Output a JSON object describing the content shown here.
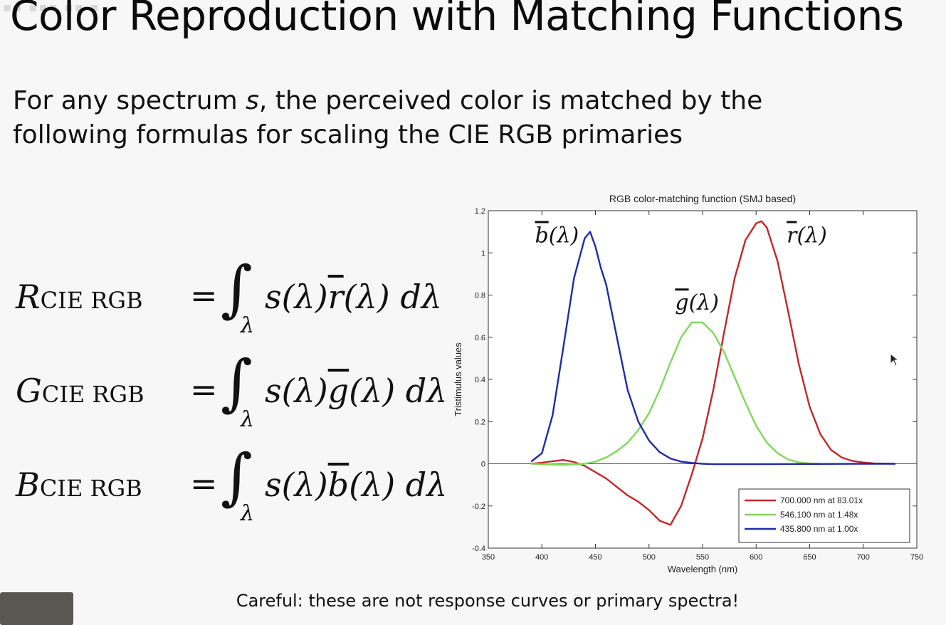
{
  "slide": {
    "title": "Color Reproduction with Matching Functions",
    "intro_before": "For any spectrum ",
    "intro_var": "s",
    "intro_after": ", the perceived color is matched by the following formulas for scaling the CIE RGB primaries",
    "caption": "Careful: these are not response curves or primary spectra!"
  },
  "equations": [
    {
      "lhs_var": "R",
      "lhs_sub": "CIE RGB",
      "equals": "=",
      "integral": "∫",
      "int_sub": "λ",
      "rhs_before": "s(λ)",
      "rhs_fn": "r",
      "rhs_after": "(λ) dλ"
    },
    {
      "lhs_var": "G",
      "lhs_sub": "CIE RGB",
      "equals": "=",
      "integral": "∫",
      "int_sub": "λ",
      "rhs_before": "s(λ)",
      "rhs_fn": "g",
      "rhs_after": "(λ) dλ"
    },
    {
      "lhs_var": "B",
      "lhs_sub": "CIE RGB",
      "equals": "=",
      "integral": "∫",
      "int_sub": "λ",
      "rhs_before": "s(λ)",
      "rhs_fn": "b",
      "rhs_after": "(λ) dλ"
    }
  ],
  "chart_data": {
    "type": "line",
    "title": "RGB color-matching function (SMJ based)",
    "xlabel": "Wavelength (nm)",
    "ylabel": "Tristimulus values",
    "xlim": [
      350,
      750
    ],
    "ylim": [
      -0.4,
      1.2
    ],
    "xticks": [
      350,
      400,
      450,
      500,
      550,
      600,
      650,
      700,
      750
    ],
    "yticks": [
      -0.4,
      -0.2,
      0,
      0.2,
      0.4,
      0.6,
      0.8,
      1,
      1.2
    ],
    "ytick_labels": [
      "-0.4",
      "-0.2",
      "0",
      "0.2",
      "0.4",
      "0.6",
      "0.8",
      "1",
      "1.2"
    ],
    "grid": false,
    "legend_position": "bottom-right",
    "series": [
      {
        "name": "700.000 nm at 83.01x",
        "color": "#c0282a",
        "curve_label": "r(λ)",
        "x": [
          390,
          400,
          410,
          420,
          430,
          440,
          450,
          460,
          470,
          480,
          490,
          500,
          510,
          520,
          530,
          540,
          550,
          560,
          570,
          580,
          590,
          600,
          605,
          610,
          620,
          630,
          640,
          650,
          660,
          670,
          680,
          690,
          700,
          710,
          720,
          730
        ],
        "y": [
          0,
          0.005,
          0.012,
          0.018,
          0.008,
          -0.01,
          -0.04,
          -0.07,
          -0.11,
          -0.15,
          -0.18,
          -0.22,
          -0.27,
          -0.29,
          -0.2,
          -0.05,
          0.12,
          0.35,
          0.62,
          0.88,
          1.06,
          1.14,
          1.15,
          1.12,
          0.96,
          0.72,
          0.47,
          0.27,
          0.14,
          0.065,
          0.03,
          0.013,
          0.006,
          0.002,
          0.001,
          0
        ]
      },
      {
        "name": "546.100 nm at  1.48x",
        "color": "#7ed957",
        "curve_label": "g(λ)",
        "x": [
          390,
          400,
          420,
          440,
          450,
          460,
          470,
          480,
          490,
          500,
          510,
          520,
          530,
          540,
          550,
          560,
          570,
          580,
          590,
          600,
          610,
          620,
          630,
          640,
          650,
          660
        ],
        "y": [
          0,
          -0.002,
          -0.005,
          0,
          0.01,
          0.03,
          0.06,
          0.1,
          0.16,
          0.24,
          0.35,
          0.48,
          0.6,
          0.67,
          0.67,
          0.62,
          0.53,
          0.41,
          0.29,
          0.18,
          0.1,
          0.05,
          0.02,
          0.006,
          0.002,
          0
        ]
      },
      {
        "name": "435.800 nm at  1.00x",
        "color": "#1f2ba8",
        "curve_label": "b(λ)",
        "x": [
          390,
          400,
          410,
          420,
          430,
          440,
          445,
          450,
          455,
          460,
          470,
          480,
          490,
          500,
          510,
          520,
          530,
          540,
          550,
          560,
          600,
          650,
          700,
          730
        ],
        "y": [
          0.01,
          0.05,
          0.23,
          0.55,
          0.88,
          1.07,
          1.1,
          1.03,
          0.93,
          0.85,
          0.6,
          0.35,
          0.2,
          0.11,
          0.055,
          0.025,
          0.01,
          0.004,
          0,
          -0.002,
          -0.002,
          -0.001,
          0,
          0
        ]
      }
    ]
  },
  "colors": {
    "background": "#f7f7f7",
    "text": "#111111"
  }
}
